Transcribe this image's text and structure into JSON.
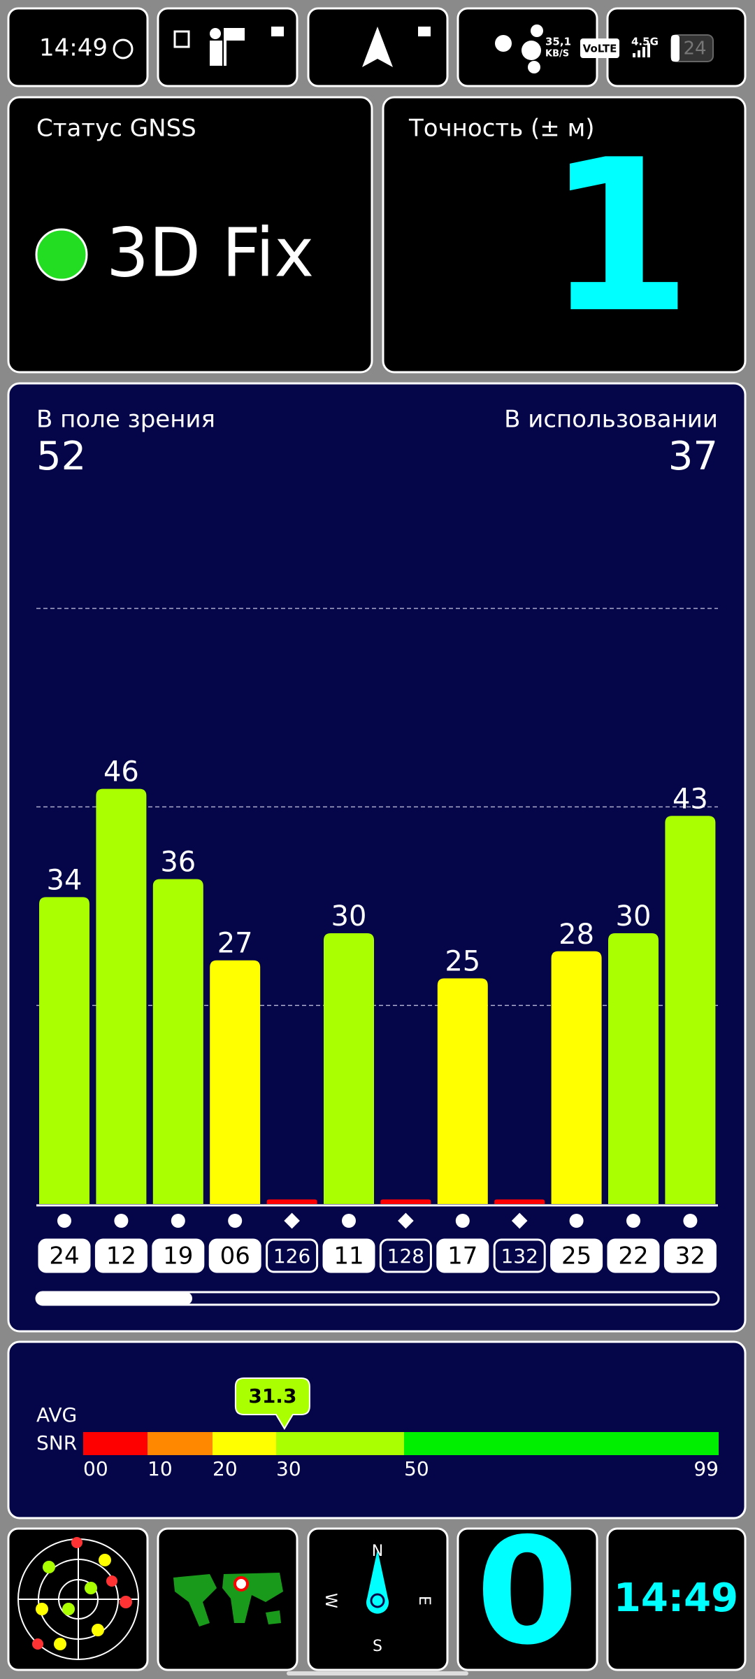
{
  "status_bar": {
    "time": "14:49",
    "net_speed": "35,1",
    "net_unit": "KB/S",
    "volte": "VoLTE",
    "network": "4.5G",
    "battery": "24"
  },
  "gnss_status": {
    "label": "Статус GNSS",
    "value": "3D Fix"
  },
  "accuracy": {
    "label": "Точность (± м)",
    "value": "1"
  },
  "satellites": {
    "in_view_label": "В поле зрения",
    "in_view": 52,
    "in_use_label": "В использовании",
    "in_use": 37
  },
  "chart_data": {
    "type": "bar",
    "categories": [
      "24",
      "12",
      "19",
      "06",
      "126",
      "11",
      "128",
      "17",
      "132",
      "25",
      "22",
      "32"
    ],
    "values": [
      34,
      46,
      36,
      27,
      0.5,
      30,
      0.5,
      25,
      0.5,
      28,
      30,
      43
    ],
    "labeled": [
      true,
      true,
      true,
      true,
      false,
      true,
      false,
      true,
      false,
      true,
      true,
      true
    ],
    "colors": [
      "#aaff00",
      "#aaff00",
      "#aaff00",
      "#ffff00",
      "#ff0000",
      "#aaff00",
      "#ff0000",
      "#ffff00",
      "#ff0000",
      "#ffff00",
      "#aaff00",
      "#aaff00"
    ],
    "markers": [
      "circle",
      "circle",
      "circle",
      "circle",
      "diamond",
      "circle",
      "diamond",
      "circle",
      "diamond",
      "circle",
      "circle",
      "circle"
    ],
    "ylim": [
      0,
      80
    ],
    "ygrid": [
      22,
      44,
      66
    ]
  },
  "snr_scale": {
    "avg_label": "AVG",
    "snr_label": "SNR",
    "ticks": [
      {
        "value": 0,
        "label": "00"
      },
      10,
      20,
      30,
      50,
      99
    ],
    "colors": [
      "#ff0000",
      "#ff8800",
      "#ffff00",
      "#aaff00",
      "#00ee00"
    ],
    "average": 31.3
  },
  "bottom": {
    "compass": {
      "n": "N",
      "e": "E",
      "s": "S",
      "w": "W"
    },
    "counter": "0",
    "clock": "14:49"
  }
}
